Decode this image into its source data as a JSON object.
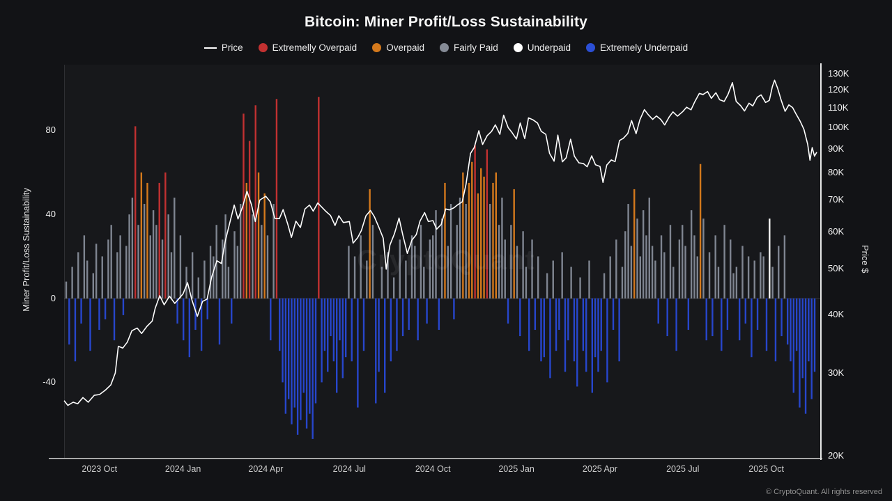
{
  "header": {
    "title": "Bitcoin: Miner Profit/Loss Sustainability"
  },
  "legend": {
    "price_label": "Price",
    "items": [
      {
        "key": "extremely_overpaid",
        "label": "Extremelly Overpaid",
        "color": "#c23131"
      },
      {
        "key": "overpaid",
        "label": "Overpaid",
        "color": "#d4791c"
      },
      {
        "key": "fairly_paid",
        "label": "Fairly Paid",
        "color": "#858b96"
      },
      {
        "key": "underpaid",
        "label": "Underpaid",
        "color": "#ffffff"
      },
      {
        "key": "extremely_underpaid",
        "label": "Extremely Underpaid",
        "color": "#2b4fd6"
      }
    ]
  },
  "watermark": "CryptoQuant",
  "footer": {
    "copyright": "© CryptoQuant. All rights reserved"
  },
  "chart_data": {
    "type": "bar+line",
    "title": "Bitcoin: Miner Profit/Loss Sustainability",
    "legend_position": "top",
    "grid": false,
    "left_axis": {
      "label": "Miner Profit/Loss Sustainability",
      "ticks": [
        80,
        40,
        0,
        -40
      ],
      "min": -75,
      "max": 110
    },
    "right_axis": {
      "label": "Price $",
      "scale": "log",
      "ticks": [
        130,
        120,
        110,
        100,
        90,
        80,
        70,
        60,
        50,
        40,
        30,
        20
      ],
      "tick_suffix": "K",
      "min": 20,
      "top": 134
    },
    "x_ticks": [
      {
        "label": "2023 Oct",
        "f": 0.047
      },
      {
        "label": "2024 Jan",
        "f": 0.158
      },
      {
        "label": "2024 Apr",
        "f": 0.268
      },
      {
        "label": "2024 Jul",
        "f": 0.379
      },
      {
        "label": "2024 Oct",
        "f": 0.49
      },
      {
        "label": "2025 Jan",
        "f": 0.601
      },
      {
        "label": "2025 Apr",
        "f": 0.712
      },
      {
        "label": "2025 Jul",
        "f": 0.822
      },
      {
        "label": "2025 Oct",
        "f": 0.933
      }
    ],
    "bar_colors": {
      "extremely_overpaid": "#c23131",
      "overpaid": "#d4791c",
      "fairly_paid": "#7f8591",
      "underpaid": "#f2f2f2",
      "extremely_underpaid": "#2746cc"
    },
    "color_thresholds": {
      "extremely_overpaid": 70,
      "overpaid": 50
    },
    "bar_overrides": {
      "31": "extremely_overpaid",
      "33": "extremely_overpaid",
      "234": "underpaid"
    },
    "bars": [
      8,
      -22,
      15,
      -30,
      22,
      -12,
      30,
      18,
      -25,
      12,
      26,
      -15,
      20,
      -10,
      28,
      35,
      -20,
      22,
      30,
      -8,
      25,
      40,
      48,
      82,
      35,
      60,
      45,
      55,
      30,
      42,
      35,
      55,
      28,
      60,
      40,
      22,
      48,
      -12,
      30,
      -20,
      15,
      -28,
      22,
      -15,
      10,
      -25,
      18,
      -10,
      25,
      20,
      35,
      -22,
      28,
      40,
      15,
      -12,
      32,
      25,
      45,
      88,
      55,
      75,
      40,
      92,
      60,
      35,
      50,
      30,
      -20,
      45,
      95,
      -25,
      -40,
      -55,
      -48,
      -60,
      -52,
      -65,
      -58,
      -45,
      -62,
      -55,
      -67,
      -50,
      96,
      -40,
      -25,
      -35,
      -18,
      -30,
      -45,
      -20,
      -38,
      -28,
      25,
      -30,
      20,
      -52,
      30,
      -25,
      18,
      52,
      35,
      -50,
      -35,
      15,
      -45,
      22,
      -30,
      10,
      -25,
      28,
      -18,
      18,
      -15,
      30,
      25,
      -20,
      35,
      15,
      -12,
      28,
      30,
      42,
      -15,
      38,
      55,
      25,
      45,
      -10,
      35,
      48,
      60,
      45,
      55,
      65,
      73,
      50,
      62,
      58,
      71,
      45,
      55,
      60,
      35,
      48,
      28,
      -12,
      35,
      52,
      25,
      -18,
      32,
      15,
      -25,
      28,
      -15,
      20,
      -30,
      -28,
      12,
      -38,
      18,
      -25,
      -15,
      22,
      -35,
      -20,
      15,
      -30,
      -42,
      10,
      -25,
      -35,
      18,
      -45,
      -28,
      -35,
      -25,
      12,
      -40,
      20,
      -15,
      28,
      -30,
      15,
      32,
      45,
      25,
      52,
      38,
      20,
      42,
      30,
      48,
      25,
      18,
      -12,
      30,
      22,
      -18,
      35,
      15,
      -25,
      28,
      35,
      25,
      -15,
      42,
      30,
      20,
      64,
      38,
      -20,
      22,
      -18,
      30,
      15,
      -25,
      35,
      -15,
      28,
      12,
      15,
      -20,
      25,
      -12,
      20,
      -28,
      18,
      -15,
      22,
      20,
      -25,
      38,
      15,
      -30,
      25,
      -18,
      30,
      -22,
      -30,
      -45,
      -25,
      -52,
      -38,
      -55,
      -30,
      -48,
      -35
    ],
    "price_units": "K USD",
    "price": [
      [
        0,
        26.2
      ],
      [
        0.005,
        25.6
      ],
      [
        0.012,
        26
      ],
      [
        0.018,
        25.8
      ],
      [
        0.025,
        26.6
      ],
      [
        0.032,
        26
      ],
      [
        0.04,
        26.9
      ],
      [
        0.047,
        27
      ],
      [
        0.055,
        27.6
      ],
      [
        0.062,
        28.3
      ],
      [
        0.068,
        30
      ],
      [
        0.072,
        34.2
      ],
      [
        0.078,
        33.9
      ],
      [
        0.084,
        34.9
      ],
      [
        0.09,
        36.9
      ],
      [
        0.097,
        37.4
      ],
      [
        0.103,
        36.4
      ],
      [
        0.11,
        37.7
      ],
      [
        0.117,
        38.7
      ],
      [
        0.121,
        41.2
      ],
      [
        0.127,
        43.8
      ],
      [
        0.133,
        41.9
      ],
      [
        0.14,
        43.7
      ],
      [
        0.147,
        42.2
      ],
      [
        0.152,
        43.1
      ],
      [
        0.158,
        44.2
      ],
      [
        0.164,
        46.7
      ],
      [
        0.17,
        42.8
      ],
      [
        0.177,
        39.6
      ],
      [
        0.184,
        42.6
      ],
      [
        0.19,
        43.1
      ],
      [
        0.196,
        48
      ],
      [
        0.203,
        52
      ],
      [
        0.209,
        51.3
      ],
      [
        0.214,
        57.1
      ],
      [
        0.22,
        62.5
      ],
      [
        0.226,
        68.3
      ],
      [
        0.231,
        63.8
      ],
      [
        0.237,
        67.6
      ],
      [
        0.243,
        73.1
      ],
      [
        0.249,
        68.4
      ],
      [
        0.254,
        63
      ],
      [
        0.26,
        70
      ],
      [
        0.268,
        71.3
      ],
      [
        0.274,
        69.4
      ],
      [
        0.28,
        64
      ],
      [
        0.286,
        63.9
      ],
      [
        0.291,
        66.8
      ],
      [
        0.297,
        62.3
      ],
      [
        0.302,
        58.3
      ],
      [
        0.308,
        63.1
      ],
      [
        0.314,
        61.2
      ],
      [
        0.32,
        67
      ],
      [
        0.326,
        68.3
      ],
      [
        0.331,
        66.3
      ],
      [
        0.337,
        69
      ],
      [
        0.342,
        67.7
      ],
      [
        0.348,
        66.2
      ],
      [
        0.354,
        64.9
      ],
      [
        0.36,
        61.8
      ],
      [
        0.365,
        64.8
      ],
      [
        0.371,
        62.7
      ],
      [
        0.379,
        63
      ],
      [
        0.384,
        56.7
      ],
      [
        0.39,
        58.2
      ],
      [
        0.395,
        60.3
      ],
      [
        0.401,
        64.8
      ],
      [
        0.407,
        66.5
      ],
      [
        0.412,
        64.6
      ],
      [
        0.418,
        61.4
      ],
      [
        0.424,
        58.1
      ],
      [
        0.428,
        49.9
      ],
      [
        0.433,
        56.2
      ],
      [
        0.439,
        59.4
      ],
      [
        0.445,
        64.1
      ],
      [
        0.45,
        59
      ],
      [
        0.456,
        53.9
      ],
      [
        0.462,
        57.5
      ],
      [
        0.468,
        59.1
      ],
      [
        0.473,
        63.2
      ],
      [
        0.479,
        65.8
      ],
      [
        0.484,
        63
      ],
      [
        0.49,
        63.3
      ],
      [
        0.495,
        60.7
      ],
      [
        0.501,
        62.1
      ],
      [
        0.507,
        67
      ],
      [
        0.512,
        66.7
      ],
      [
        0.518,
        67.4
      ],
      [
        0.523,
        68.4
      ],
      [
        0.529,
        69.4
      ],
      [
        0.534,
        75.6
      ],
      [
        0.54,
        88
      ],
      [
        0.545,
        90.6
      ],
      [
        0.551,
        98.3
      ],
      [
        0.556,
        91.9
      ],
      [
        0.562,
        95.9
      ],
      [
        0.568,
        98
      ],
      [
        0.573,
        101.2
      ],
      [
        0.579,
        96.6
      ],
      [
        0.584,
        106.1
      ],
      [
        0.59,
        99.8
      ],
      [
        0.595,
        97.5
      ],
      [
        0.601,
        94.4
      ],
      [
        0.606,
        102.1
      ],
      [
        0.612,
        94.6
      ],
      [
        0.617,
        104.7
      ],
      [
        0.623,
        103.7
      ],
      [
        0.629,
        102.1
      ],
      [
        0.634,
        98
      ],
      [
        0.64,
        96.6
      ],
      [
        0.645,
        88
      ],
      [
        0.651,
        84.7
      ],
      [
        0.656,
        96.2
      ],
      [
        0.662,
        84.4
      ],
      [
        0.667,
        86.1
      ],
      [
        0.673,
        94.3
      ],
      [
        0.678,
        86.8
      ],
      [
        0.684,
        84
      ],
      [
        0.69,
        83.7
      ],
      [
        0.695,
        82.4
      ],
      [
        0.701,
        86.9
      ],
      [
        0.706,
        83.2
      ],
      [
        0.712,
        82.5
      ],
      [
        0.716,
        76.3
      ],
      [
        0.721,
        83.1
      ],
      [
        0.727,
        85.2
      ],
      [
        0.732,
        84.5
      ],
      [
        0.738,
        93.7
      ],
      [
        0.743,
        94.7
      ],
      [
        0.749,
        97
      ],
      [
        0.754,
        103.3
      ],
      [
        0.76,
        96.9
      ],
      [
        0.765,
        103.7
      ],
      [
        0.771,
        109
      ],
      [
        0.776,
        106.4
      ],
      [
        0.782,
        103.9
      ],
      [
        0.787,
        105.7
      ],
      [
        0.793,
        103.8
      ],
      [
        0.798,
        101.1
      ],
      [
        0.804,
        105.2
      ],
      [
        0.809,
        107.8
      ],
      [
        0.815,
        105.6
      ],
      [
        0.822,
        108
      ],
      [
        0.827,
        110.3
      ],
      [
        0.833,
        108.9
      ],
      [
        0.838,
        113.3
      ],
      [
        0.844,
        118
      ],
      [
        0.849,
        117.4
      ],
      [
        0.855,
        119.1
      ],
      [
        0.86,
        115.2
      ],
      [
        0.866,
        118.4
      ],
      [
        0.871,
        114.4
      ],
      [
        0.877,
        113.5
      ],
      [
        0.882,
        117.4
      ],
      [
        0.888,
        124.4
      ],
      [
        0.893,
        113.5
      ],
      [
        0.899,
        111.1
      ],
      [
        0.904,
        108.3
      ],
      [
        0.91,
        112.5
      ],
      [
        0.915,
        111
      ],
      [
        0.921,
        115.8
      ],
      [
        0.926,
        117.2
      ],
      [
        0.932,
        112.9
      ],
      [
        0.937,
        114.1
      ],
      [
        0.941,
        122
      ],
      [
        0.944,
        125.9
      ],
      [
        0.948,
        121.2
      ],
      [
        0.953,
        113.9
      ],
      [
        0.958,
        108.1
      ],
      [
        0.963,
        111.6
      ],
      [
        0.968,
        110.1
      ],
      [
        0.973,
        106.4
      ],
      [
        0.978,
        103
      ],
      [
        0.983,
        99
      ],
      [
        0.988,
        92
      ],
      [
        0.991,
        85.1
      ],
      [
        0.994,
        90.5
      ],
      [
        0.997,
        86.8
      ],
      [
        1,
        88.5
      ]
    ]
  }
}
